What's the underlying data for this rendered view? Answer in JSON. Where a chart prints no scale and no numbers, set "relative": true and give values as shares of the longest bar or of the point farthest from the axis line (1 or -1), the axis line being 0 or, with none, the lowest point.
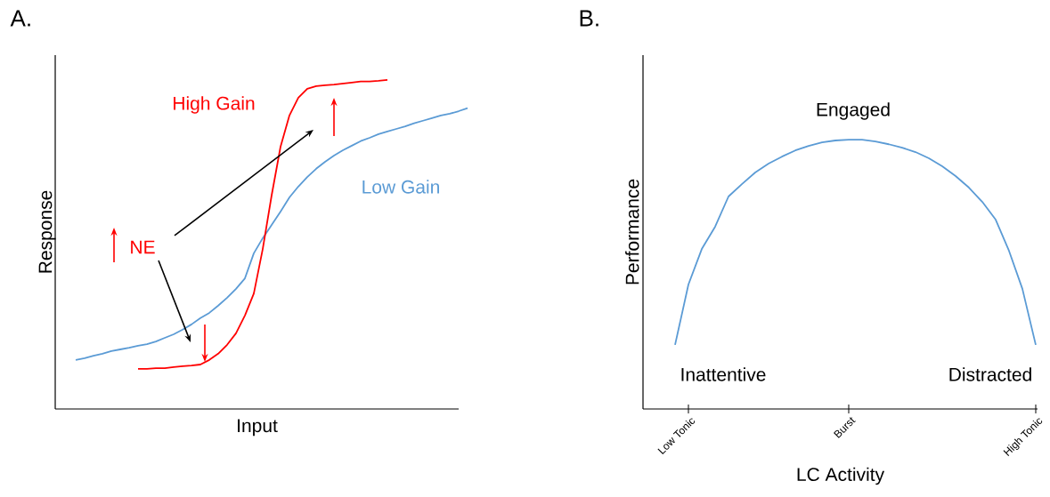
{
  "chart_data": [
    {
      "type": "line",
      "title": "A.",
      "xlabel": "Input",
      "ylabel": "Response",
      "relative": true,
      "tick_labels": false,
      "categories": [
        null,
        null,
        null,
        null,
        null,
        null,
        null,
        null,
        null,
        null,
        null,
        null,
        null,
        null,
        null,
        null,
        null,
        null,
        null,
        null,
        null,
        null,
        null,
        null,
        null,
        null,
        null,
        null,
        null,
        null,
        null,
        null,
        null,
        null,
        null,
        null,
        null,
        null,
        null,
        null,
        null,
        null,
        null,
        null,
        null
      ],
      "series": [
        {
          "name": "Low Gain",
          "color": "#5b9bd5",
          "values": [
            0.149,
            0.154,
            0.162,
            0.168,
            0.176,
            0.181,
            0.186,
            0.192,
            0.197,
            0.205,
            0.216,
            0.227,
            0.241,
            0.257,
            0.276,
            0.292,
            0.314,
            0.338,
            0.365,
            0.397,
            0.473,
            0.519,
            0.559,
            0.6,
            0.643,
            0.676,
            0.705,
            0.73,
            0.751,
            0.77,
            0.786,
            0.8,
            0.814,
            0.824,
            0.835,
            0.843,
            0.851,
            0.859,
            0.868,
            0.876,
            0.884,
            0.892,
            0.897,
            0.905,
            0.914
          ]
        },
        {
          "name": "High Gain",
          "color": "#ff0000",
          "values": [
            null,
            null,
            null,
            null,
            null,
            null,
            null,
            0.122,
            0.122,
            0.124,
            0.124,
            0.127,
            0.13,
            0.132,
            0.135,
            0.149,
            0.168,
            0.195,
            0.23,
            0.284,
            0.351,
            0.486,
            0.649,
            0.797,
            0.892,
            0.946,
            0.973,
            0.981,
            0.984,
            0.986,
            0.989,
            0.992,
            0.995,
            0.995,
            0.997,
            1.0,
            null,
            null,
            null,
            null,
            null,
            null,
            null,
            null,
            null
          ]
        }
      ],
      "annotations": [
        "NE"
      ]
    },
    {
      "type": "line",
      "title": "B.",
      "xlabel": "LC Activity",
      "ylabel": "Performance",
      "relative": true,
      "tick_labels": "x",
      "categories": [
        null,
        "Low Tonic",
        null,
        null,
        null,
        null,
        null,
        null,
        null,
        null,
        null,
        null,
        null,
        "Burst",
        null,
        null,
        null,
        null,
        null,
        null,
        null,
        null,
        null,
        null,
        null,
        null,
        null,
        "High Tonic"
      ],
      "series": [
        {
          "color": "#5b9bd5",
          "values": [
            0.238,
            0.462,
            0.594,
            0.677,
            0.789,
            0.835,
            0.878,
            0.911,
            0.937,
            0.96,
            0.977,
            0.99,
            0.997,
            1.0,
            1.0,
            0.993,
            0.983,
            0.97,
            0.954,
            0.931,
            0.901,
            0.865,
            0.822,
            0.769,
            0.703,
            0.587,
            0.446,
            0.238
          ]
        }
      ],
      "annotations": [
        "Engaged",
        "Inattentive",
        "Distracted"
      ]
    }
  ]
}
